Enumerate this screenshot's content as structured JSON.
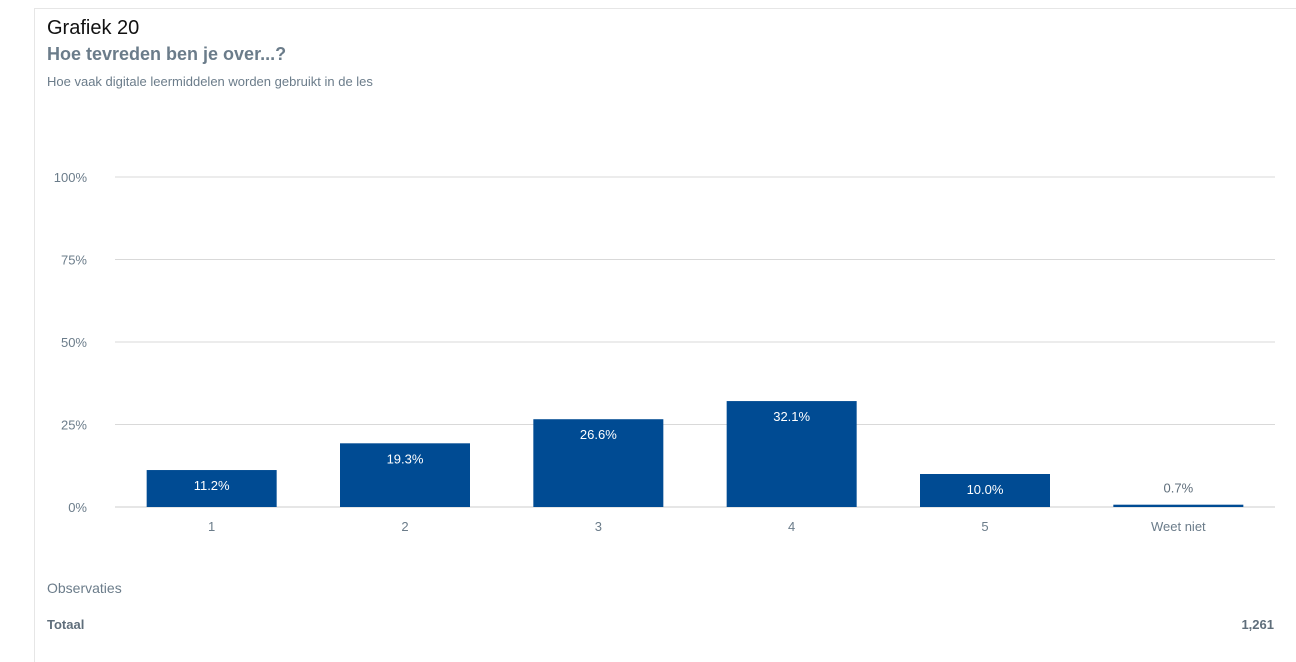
{
  "header": {
    "title": "Grafiek 20",
    "subtitle": "Hoe tevreden ben je over...?",
    "description": "Hoe vaak digitale leermiddelen worden gebruikt in de les"
  },
  "chart_data": {
    "type": "bar",
    "categories": [
      "1",
      "2",
      "3",
      "4",
      "5",
      "Weet niet"
    ],
    "values": [
      11.2,
      19.3,
      26.6,
      32.1,
      10.0,
      0.7
    ],
    "data_labels": [
      "11.2%",
      "19.3%",
      "26.6%",
      "32.1%",
      "10.0%",
      "0.7%"
    ],
    "y_ticks": [
      0,
      25,
      50,
      75,
      100
    ],
    "y_tick_labels": [
      "0%",
      "25%",
      "50%",
      "75%",
      "100%"
    ],
    "ylim": [
      0,
      100
    ],
    "grid": true,
    "legend": "none",
    "bar_color": "#004b93",
    "grid_color": "#d9d9d9",
    "label_color_inside": "#ffffff",
    "label_color_outside": "#5f6e7b",
    "axis_text_color": "#6b7c8a"
  },
  "observations": {
    "heading": "Observaties",
    "total_label": "Totaal",
    "total_value": "1,261"
  }
}
